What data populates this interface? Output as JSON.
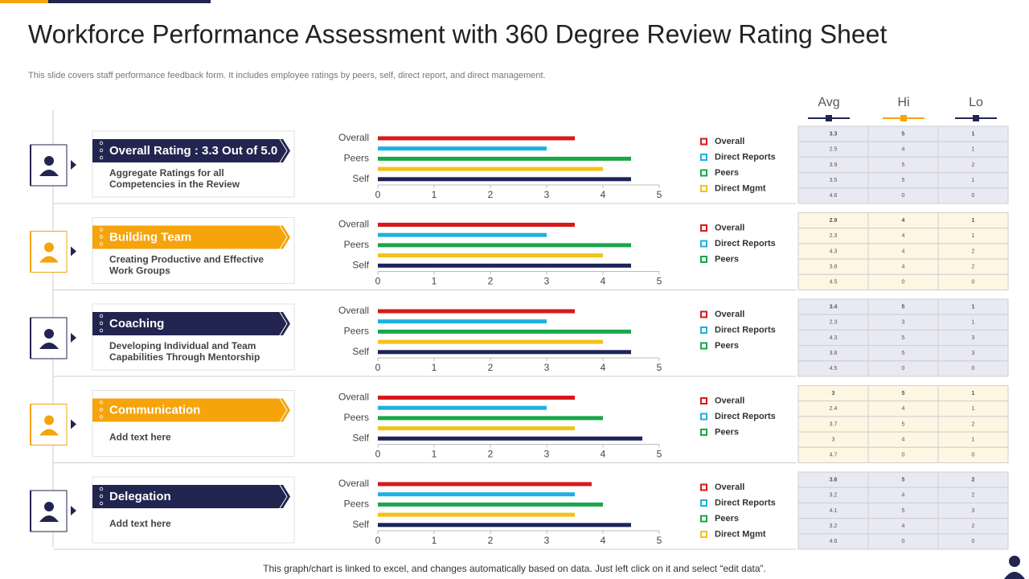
{
  "header": {
    "title": "Workforce Performance Assessment with 360 Degree Review Rating Sheet",
    "subtitle": "This slide covers staff performance feedback form. It includes employee ratings by peers, self, direct report, and direct management."
  },
  "columns": [
    "Avg",
    "Hi",
    "Lo"
  ],
  "sections": [
    {
      "label": "Overall Rating : 3.3 Out of 5.0",
      "description": [
        "Aggregate Ratings for all",
        "Competencies in the Review"
      ],
      "chart": {
        "type": "bar",
        "categories": [
          "Overall",
          null,
          "Peers",
          null,
          "Self"
        ],
        "values": [
          3.5,
          3.0,
          4.5,
          4.0,
          4.5
        ],
        "colors": [
          "#d7191c",
          "#1fb0e0",
          "#1aa64a",
          "#f2c21b",
          "#1c2457"
        ],
        "xlim": [
          0,
          5
        ],
        "xticks": [
          0,
          1,
          2,
          3,
          4,
          5
        ]
      },
      "legend": [
        {
          "name": "Overall",
          "color": "#d7191c"
        },
        {
          "name": "Direct Reports",
          "color": "#1fb0e0"
        },
        {
          "name": "Peers",
          "color": "#1aa64a"
        },
        {
          "name": "Direct Mgmt",
          "color": "#f2c21b"
        }
      ],
      "table": [
        [
          3.3,
          5,
          1
        ],
        [
          2.5,
          4,
          1
        ],
        [
          3.9,
          5,
          2
        ],
        [
          3.5,
          5,
          1
        ],
        [
          4.6,
          0,
          0
        ]
      ]
    },
    {
      "label": "Building Team",
      "description": [
        "Creating Productive and Effective",
        "Work Groups"
      ],
      "chart": {
        "type": "bar",
        "categories": [
          "Overall",
          null,
          "Peers",
          null,
          "Self"
        ],
        "values": [
          3.5,
          3.0,
          4.5,
          4.0,
          4.5
        ],
        "colors": [
          "#d7191c",
          "#1fb0e0",
          "#1aa64a",
          "#f2c21b",
          "#1c2457"
        ],
        "xlim": [
          0,
          5
        ],
        "xticks": [
          0,
          1,
          2,
          3,
          4,
          5
        ]
      },
      "legend": [
        {
          "name": "Overall",
          "color": "#d7191c"
        },
        {
          "name": "Direct Reports",
          "color": "#1fb0e0"
        },
        {
          "name": "Peers",
          "color": "#1aa64a"
        }
      ],
      "table": [
        [
          2.9,
          4,
          1
        ],
        [
          2.3,
          4,
          1
        ],
        [
          4.3,
          4,
          2
        ],
        [
          3.8,
          4,
          2
        ],
        [
          4.5,
          0,
          0
        ]
      ]
    },
    {
      "label": "Coaching",
      "description": [
        "Developing Individual and Team",
        "Capabilities Through Mentorship"
      ],
      "chart": {
        "type": "bar",
        "categories": [
          "Overall",
          null,
          "Peers",
          null,
          "Self"
        ],
        "values": [
          3.5,
          3.0,
          4.5,
          4.0,
          4.5
        ],
        "colors": [
          "#d7191c",
          "#1fb0e0",
          "#1aa64a",
          "#f2c21b",
          "#1c2457"
        ],
        "xlim": [
          0,
          5
        ],
        "xticks": [
          0,
          1,
          2,
          3,
          4,
          5
        ]
      },
      "legend": [
        {
          "name": "Overall",
          "color": "#d7191c"
        },
        {
          "name": "Direct Reports",
          "color": "#1fb0e0"
        },
        {
          "name": "Peers",
          "color": "#1aa64a"
        }
      ],
      "table": [
        [
          3.4,
          5,
          1
        ],
        [
          2.3,
          3,
          1
        ],
        [
          4.3,
          5,
          3
        ],
        [
          3.8,
          5,
          3
        ],
        [
          4.5,
          0,
          0
        ]
      ]
    },
    {
      "label": "Communication",
      "description": [
        "Add text here"
      ],
      "chart": {
        "type": "bar",
        "categories": [
          "Overall",
          null,
          "Peers",
          null,
          "Self"
        ],
        "values": [
          3.5,
          3.0,
          4.0,
          3.5,
          4.7
        ],
        "colors": [
          "#d7191c",
          "#1fb0e0",
          "#1aa64a",
          "#f2c21b",
          "#1c2457"
        ],
        "xlim": [
          0,
          5
        ],
        "xticks": [
          0,
          1,
          2,
          3,
          4,
          5
        ]
      },
      "legend": [
        {
          "name": "Overall",
          "color": "#d7191c"
        },
        {
          "name": "Direct Reports",
          "color": "#1fb0e0"
        },
        {
          "name": "Peers",
          "color": "#1aa64a"
        }
      ],
      "table": [
        [
          3,
          5,
          1
        ],
        [
          2.4,
          4,
          1
        ],
        [
          3.7,
          5,
          2
        ],
        [
          3,
          4,
          1
        ],
        [
          4.7,
          0,
          0
        ]
      ]
    },
    {
      "label": "Delegation",
      "description": [
        "Add text here"
      ],
      "chart": {
        "type": "bar",
        "categories": [
          "Overall",
          null,
          "Peers",
          null,
          "Self"
        ],
        "values": [
          3.8,
          3.5,
          4.0,
          3.5,
          4.5
        ],
        "colors": [
          "#d7191c",
          "#1fb0e0",
          "#1aa64a",
          "#f2c21b",
          "#1c2457"
        ],
        "xlim": [
          0,
          5
        ],
        "xticks": [
          0,
          1,
          2,
          3,
          4,
          5
        ]
      },
      "legend": [
        {
          "name": "Overall",
          "color": "#d7191c"
        },
        {
          "name": "Direct Reports",
          "color": "#1fb0e0"
        },
        {
          "name": "Peers",
          "color": "#1aa64a"
        },
        {
          "name": "Direct Mgmt",
          "color": "#f2c21b"
        }
      ],
      "table": [
        [
          3.6,
          5,
          2
        ],
        [
          3.2,
          4,
          2
        ],
        [
          4.1,
          5,
          3
        ],
        [
          3.2,
          4,
          2
        ],
        [
          4.6,
          0,
          0
        ]
      ]
    }
  ],
  "footer": "This graph/chart is linked to excel, and changes automatically based on data. Just left click on it and select “edit data”."
}
